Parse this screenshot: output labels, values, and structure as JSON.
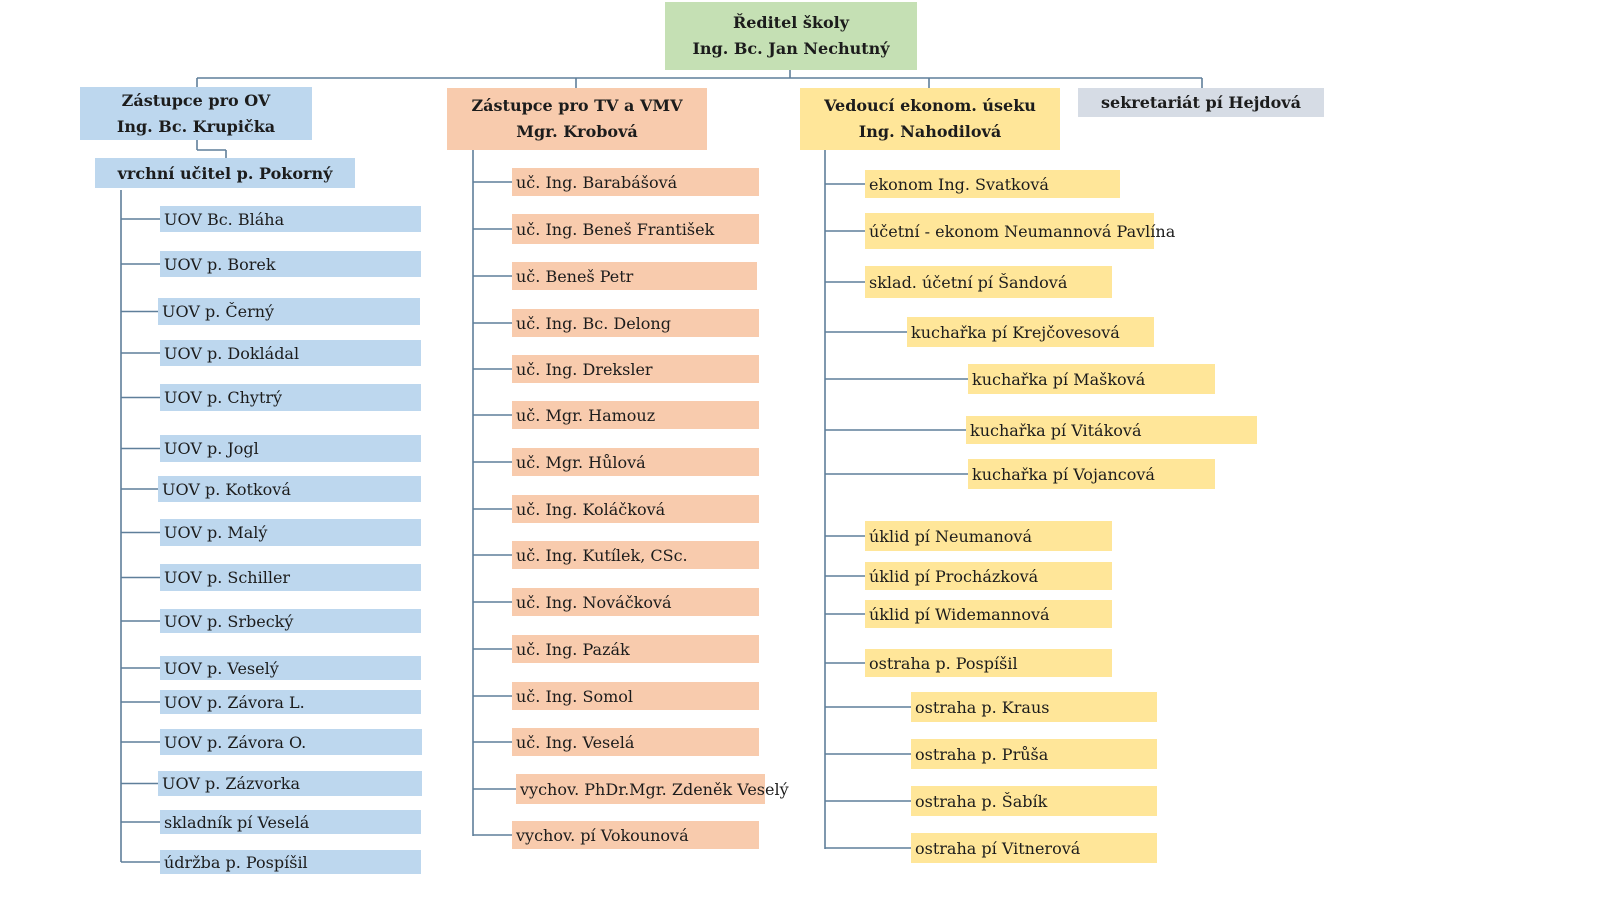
{
  "director": {
    "title": "Ředitel školy",
    "name": "Ing. Bc. Jan Nechutný"
  },
  "ov": {
    "title": "Zástupce pro OV",
    "name": "Ing. Bc. Krupička",
    "sub": "vrchní učitel p. Pokorný",
    "members": [
      "UOV Bc. Bláha",
      "UOV p. Borek",
      "UOV p. Černý",
      "UOV p. Dokládal",
      "UOV p. Chytrý",
      "UOV p.  Jogl",
      "UOV p. Kotková",
      "UOV p. Malý",
      "UOV p. Schiller",
      "UOV p. Srbecký",
      "UOV p. Veselý",
      "UOV p. Závora L.",
      "UOV p. Závora O.",
      "UOV p. Zázvorka",
      "skladník pí Veselá",
      "údržba p. Pospíšil"
    ]
  },
  "tv": {
    "title": "Zástupce pro TV a VMV",
    "name": "Mgr. Krobová",
    "members": [
      "uč. Ing. Barabášová",
      "uč. Ing. Beneš František",
      "uč. Beneš Petr",
      "uč. Ing. Bc. Delong",
      "uč. Ing. Dreksler",
      "uč. Mgr. Hamouz",
      "uč. Mgr. Hůlová",
      "uč. Ing. Koláčková",
      "uč. Ing. Kutílek, CSc.",
      "uč. Ing. Nováčková",
      "uč. Ing. Pazák",
      "uč. Ing. Somol",
      "uč. Ing. Veselá",
      "vychov. PhDr.Mgr. Zdeněk Veselý",
      "vychov. pí Vokounová"
    ]
  },
  "ek": {
    "title": "Vedoucí ekonom. úseku",
    "name": "Ing. Nahodilová",
    "members": [
      "ekonom Ing. Svatková",
      "účetní - ekonom Neumannová Pavlína",
      "sklad. účetní pí Šandová",
      "kuchařka pí Krejčovesová",
      "kuchařka pí Mašková",
      "kuchařka pí Vitáková",
      "kuchařka pí Vojancová",
      "úklid pí Neumanová",
      "úklid pí Procházková",
      "úklid pí Widemannová",
      "ostraha p. Pospíšil",
      "ostraha p. Kraus",
      "ostraha p. Průša",
      "ostraha p. Šabík",
      "ostraha pí Vitnerová"
    ]
  },
  "secretariat": {
    "label": "sekretariát pí Hejdová"
  },
  "colors": {
    "director": "#c5e0b4",
    "ov": "#bdd7ee",
    "tv": "#f8cbad",
    "ek": "#ffe699",
    "secretariat": "#d6dce5",
    "line": "#5f7f9a"
  }
}
